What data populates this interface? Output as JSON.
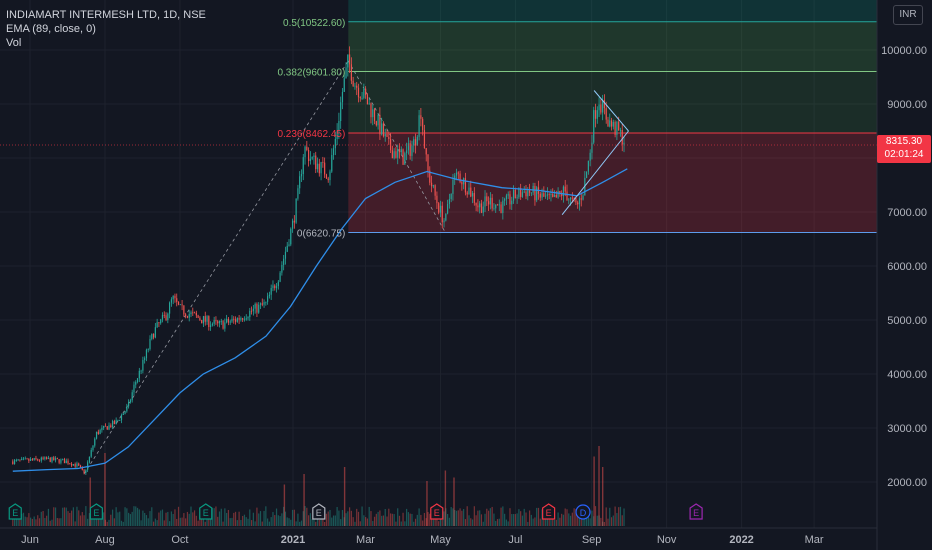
{
  "legend": {
    "symbol": "INDIAMART INTERMESH LTD, 1D, NSE",
    "ema": "EMA (89, close, 0)",
    "vol": "Vol"
  },
  "currency": "INR",
  "last_price": {
    "value": "8315.30",
    "countdown": "02:01:24",
    "price": 8315.3
  },
  "colors": {
    "background": "#131722",
    "up": "#26a69a",
    "down": "#ef5350",
    "ema": "#2f8ee9",
    "fib_zone_red": "#f23645",
    "fib_zone_green": "#4caf50",
    "fib_zone_teal": "#089981",
    "grid": "#1e222d",
    "axis_text": "#b2b5be"
  },
  "chart_data": {
    "type": "candlestick",
    "title": "INDIAMART INTERMESH LTD, 1D, NSE",
    "y_axis": {
      "ticks": [
        "2000.00",
        "3000.00",
        "4000.00",
        "5000.00",
        "6000.00",
        "7000.00",
        "8000.00",
        "9000.00",
        "10000.00"
      ],
      "range": [
        1250,
        11000
      ]
    },
    "x_axis": {
      "ticks": [
        "Jun",
        "Aug",
        "Oct",
        "2021",
        "Mar",
        "May",
        "Jul",
        "Sep",
        "Nov",
        "2022",
        "Mar"
      ]
    },
    "fib_levels": [
      {
        "label": "0.5(10522.60)",
        "value": 10522.6
      },
      {
        "label": "0.382(9601.80)",
        "value": 9601.8
      },
      {
        "label": "0.236(8462.45)",
        "value": 8462.45
      },
      {
        "label": "0(6620.75)",
        "value": 6620.75
      }
    ],
    "price_path": [
      [
        "2020-05-18",
        2380
      ],
      [
        "2020-06-01",
        2400
      ],
      [
        "2020-06-15",
        2420
      ],
      [
        "2020-07-01",
        2380
      ],
      [
        "2020-07-10",
        2300
      ],
      [
        "2020-07-15",
        2150
      ],
      [
        "2020-07-20",
        2500
      ],
      [
        "2020-07-25",
        2900
      ],
      [
        "2020-08-01",
        3000
      ],
      [
        "2020-08-10",
        3100
      ],
      [
        "2020-08-20",
        3400
      ],
      [
        "2020-08-25",
        3800
      ],
      [
        "2020-09-01",
        4200
      ],
      [
        "2020-09-10",
        4800
      ],
      [
        "2020-09-20",
        5100
      ],
      [
        "2020-09-25",
        5400
      ],
      [
        "2020-10-01",
        5200
      ],
      [
        "2020-10-10",
        5100
      ],
      [
        "2020-10-20",
        5000
      ],
      [
        "2020-11-01",
        4900
      ],
      [
        "2020-11-15",
        5000
      ],
      [
        "2020-12-01",
        5200
      ],
      [
        "2020-12-10",
        5300
      ],
      [
        "2020-12-20",
        5800
      ],
      [
        "2020-12-25",
        6200
      ],
      [
        "2021-01-01",
        6800
      ],
      [
        "2021-01-05",
        7300
      ],
      [
        "2021-01-10",
        8200
      ],
      [
        "2021-01-15",
        8000
      ],
      [
        "2021-01-25",
        7800
      ],
      [
        "2021-01-30",
        7700
      ],
      [
        "2021-02-05",
        8400
      ],
      [
        "2021-02-10",
        9200
      ],
      [
        "2021-02-15",
        9800
      ],
      [
        "2021-02-20",
        9400
      ],
      [
        "2021-03-01",
        9100
      ],
      [
        "2021-03-10",
        8700
      ],
      [
        "2021-03-20",
        8200
      ],
      [
        "2021-04-01",
        8000
      ],
      [
        "2021-04-10",
        8300
      ],
      [
        "2021-04-15",
        8900
      ],
      [
        "2021-04-20",
        7800
      ],
      [
        "2021-04-25",
        7400
      ],
      [
        "2021-05-01",
        7000
      ],
      [
        "2021-05-05",
        6800
      ],
      [
        "2021-05-10",
        7500
      ],
      [
        "2021-05-15",
        7700
      ],
      [
        "2021-05-25",
        7400
      ],
      [
        "2021-06-01",
        7100
      ],
      [
        "2021-06-10",
        7200
      ],
      [
        "2021-06-20",
        7100
      ],
      [
        "2021-07-01",
        7300
      ],
      [
        "2021-07-10",
        7400
      ],
      [
        "2021-07-20",
        7300
      ],
      [
        "2021-08-01",
        7200
      ],
      [
        "2021-08-10",
        7400
      ],
      [
        "2021-08-15",
        7200
      ],
      [
        "2021-08-20",
        7100
      ],
      [
        "2021-08-25",
        7400
      ],
      [
        "2021-08-30",
        8000
      ],
      [
        "2021-09-03",
        8800
      ],
      [
        "2021-09-07",
        9100
      ],
      [
        "2021-09-12",
        8800
      ],
      [
        "2021-09-17",
        8600
      ],
      [
        "2021-09-22",
        8500
      ],
      [
        "2021-09-28",
        8320
      ]
    ],
    "ema_path": [
      [
        "2020-05-18",
        2200
      ],
      [
        "2020-06-15",
        2230
      ],
      [
        "2020-07-10",
        2250
      ],
      [
        "2020-08-01",
        2350
      ],
      [
        "2020-08-20",
        2650
      ],
      [
        "2020-09-10",
        3150
      ],
      [
        "2020-10-01",
        3650
      ],
      [
        "2020-10-20",
        4000
      ],
      [
        "2020-11-15",
        4300
      ],
      [
        "2020-12-10",
        4700
      ],
      [
        "2020-12-30",
        5250
      ],
      [
        "2021-01-20",
        6000
      ],
      [
        "2021-02-10",
        6700
      ],
      [
        "2021-03-01",
        7250
      ],
      [
        "2021-03-25",
        7550
      ],
      [
        "2021-04-20",
        7750
      ],
      [
        "2021-05-15",
        7600
      ],
      [
        "2021-06-20",
        7450
      ],
      [
        "2021-07-20",
        7400
      ],
      [
        "2021-08-20",
        7300
      ],
      [
        "2021-09-10",
        7550
      ],
      [
        "2021-09-30",
        7800
      ]
    ],
    "annotations": {
      "rising_dashed_line": [
        [
          "2020-07-15",
          2150
        ],
        [
          "2021-02-15",
          9800
        ]
      ],
      "falling_dashed_line": [
        [
          "2021-02-15",
          9800
        ],
        [
          "2021-05-05",
          6620
        ]
      ],
      "rising_trendline": [
        [
          "2021-08-08",
          6950
        ],
        [
          "2021-10-01",
          8500
        ]
      ],
      "falling_trendline": [
        [
          "2021-09-03",
          9250
        ],
        [
          "2021-10-01",
          8500
        ]
      ]
    },
    "volume_spikes": [
      [
        "2020-07-20",
        0.55
      ],
      [
        "2020-08-01",
        0.9
      ],
      [
        "2020-12-25",
        0.45
      ],
      [
        "2021-01-10",
        0.6
      ],
      [
        "2021-02-12",
        0.7
      ],
      [
        "2021-04-20",
        0.5
      ],
      [
        "2021-05-05",
        0.65
      ],
      [
        "2021-05-12",
        0.55
      ],
      [
        "2021-09-03",
        0.85
      ],
      [
        "2021-09-07",
        1.0
      ],
      [
        "2021-09-10",
        0.7
      ]
    ],
    "event_markers": [
      {
        "date": "2020-05-20",
        "label": "E",
        "color": "#089981"
      },
      {
        "date": "2020-07-25",
        "label": "E",
        "color": "#089981"
      },
      {
        "date": "2020-10-22",
        "label": "E",
        "color": "#089981"
      },
      {
        "date": "2021-01-22",
        "label": "E",
        "color": "#b2b5be"
      },
      {
        "date": "2021-04-28",
        "label": "E",
        "color": "#f23645"
      },
      {
        "date": "2021-07-28",
        "label": "E",
        "color": "#f23645"
      },
      {
        "date": "2021-08-25",
        "label": "D",
        "color": "#2962ff"
      },
      {
        "date": "2021-11-25",
        "label": "E",
        "color": "#9c27b0"
      }
    ],
    "grid": true
  }
}
